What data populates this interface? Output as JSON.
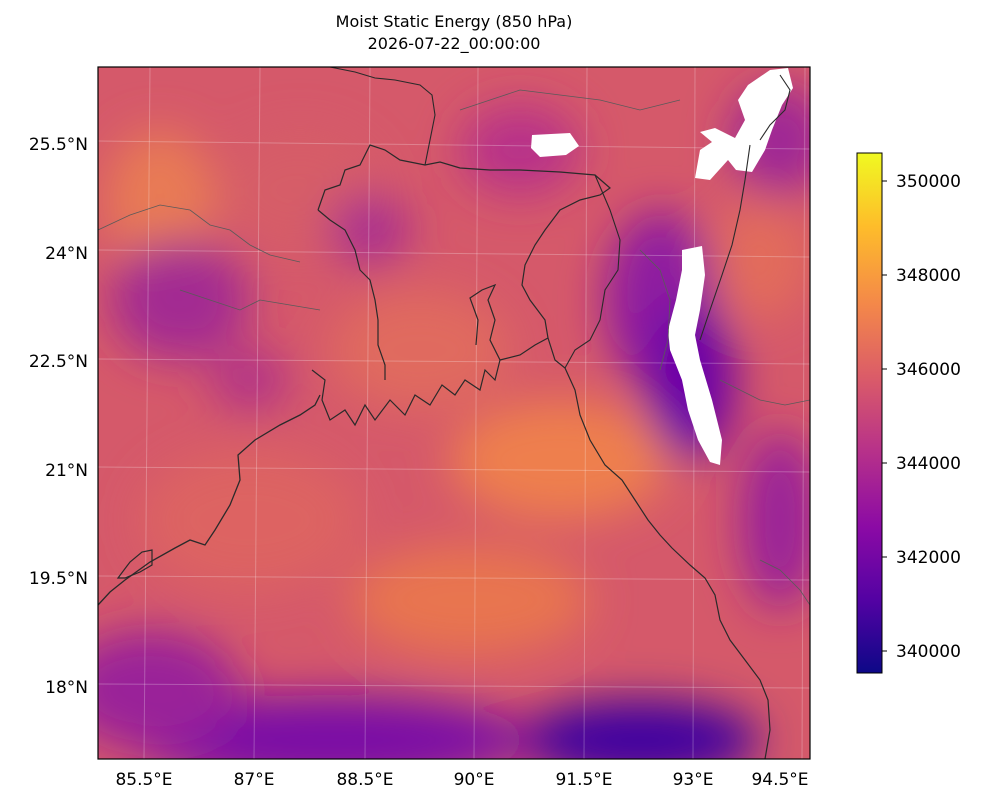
{
  "title": "Moist Static Energy (850 hPa)",
  "subtitle": "2026-07-22_00:00:00",
  "x_ticks": [
    "85.5°E",
    "87°E",
    "88.5°E",
    "90°E",
    "91.5°E",
    "93°E",
    "94.5°E"
  ],
  "y_ticks": [
    "25.5°N",
    "24°N",
    "22.5°N",
    "21°N",
    "19.5°N",
    "18°N"
  ],
  "colorbar": {
    "colormap": "plasma",
    "min": 339600,
    "max": 350600,
    "ticks": [
      "350000",
      "348000",
      "346000",
      "344000",
      "342000",
      "340000"
    ],
    "colors": [
      "#0d0887",
      "#5302a3",
      "#8b0aa5",
      "#b83289",
      "#db5c68",
      "#f48849",
      "#febd2a",
      "#f0f921"
    ]
  },
  "chart_data": {
    "type": "heatmap",
    "title": "Moist Static Energy (850 hPa)",
    "subtitle": "2026-07-22_00:00:00",
    "xlabel": "",
    "ylabel": "",
    "x_range_deg_E": [
      84.8,
      94.9
    ],
    "y_range_deg_N": [
      16.8,
      26.7
    ],
    "value_range": [
      339600,
      350600
    ],
    "colorbar_ticks": [
      340000,
      342000,
      344000,
      346000,
      348000,
      350000
    ],
    "grid": true,
    "legend": "colorbar-right"
  }
}
